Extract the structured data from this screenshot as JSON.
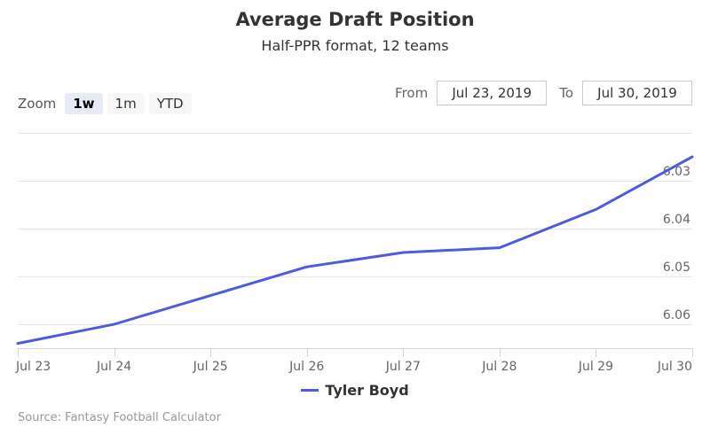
{
  "header": {
    "title": "Average Draft Position",
    "subtitle": "Half-PPR format, 12 teams"
  },
  "zoom": {
    "label": "Zoom",
    "buttons": [
      "1w",
      "1m",
      "YTD"
    ],
    "active": "1w"
  },
  "range": {
    "from_label": "From",
    "from_value": "Jul 23, 2019",
    "to_label": "To",
    "to_value": "Jul 30, 2019"
  },
  "credits": "Source: Fantasy Football Calculator",
  "colors": {
    "series": "#4e5bdb",
    "grid": "#e6e6e6",
    "axis": "#ccd6eb"
  },
  "chart_data": {
    "type": "line",
    "x": [
      "Jul 23",
      "Jul 24",
      "Jul 25",
      "Jul 26",
      "Jul 27",
      "Jul 28",
      "Jul 29",
      "Jul 30"
    ],
    "series": [
      {
        "name": "Tyler Boyd",
        "values": [
          6.064,
          6.06,
          6.054,
          6.048,
          6.045,
          6.044,
          6.036,
          6.025
        ]
      }
    ],
    "y_ticks": [
      "6.03",
      "6.04",
      "6.05",
      "6.06"
    ],
    "y_tick_values": [
      6.03,
      6.04,
      6.05,
      6.06
    ],
    "y_reversed": true,
    "y_axis_side": "right",
    "ylim": [
      6.02,
      6.065
    ],
    "grid": true,
    "legend": "bottom-center",
    "title": "Average Draft Position",
    "subtitle": "Half-PPR format, 12 teams"
  }
}
